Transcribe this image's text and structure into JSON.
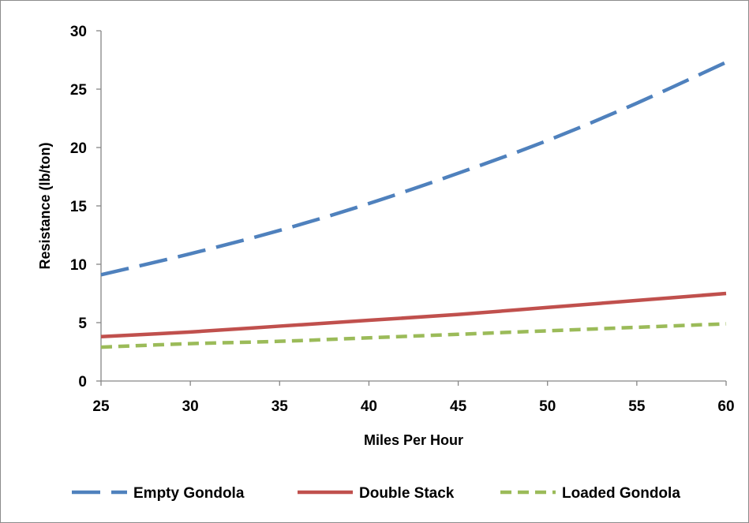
{
  "chart_data": {
    "type": "line",
    "title": "",
    "xlabel": "Miles Per Hour",
    "ylabel": "Resistance (lb/ton)",
    "xlim": [
      25,
      60
    ],
    "ylim": [
      0,
      30
    ],
    "x_ticks": [
      "25",
      "30",
      "35",
      "40",
      "45",
      "50",
      "55",
      "60"
    ],
    "y_ticks": [
      "0",
      "5",
      "10",
      "15",
      "20",
      "25",
      "30"
    ],
    "grid": false,
    "legend_position": "bottom",
    "x": [
      25,
      30,
      35,
      40,
      45,
      50,
      55,
      60
    ],
    "series": [
      {
        "name": "Empty Gondola",
        "color": "#4f81bd",
        "style": "long-dash",
        "values": [
          9.1,
          10.9,
          12.9,
          15.2,
          17.8,
          20.6,
          23.8,
          27.3
        ]
      },
      {
        "name": "Double Stack",
        "color": "#c0504d",
        "style": "solid",
        "values": [
          3.8,
          4.2,
          4.7,
          5.2,
          5.7,
          6.3,
          6.9,
          7.5
        ]
      },
      {
        "name": "Loaded Gondola",
        "color": "#9bbb59",
        "style": "short-dash",
        "values": [
          2.9,
          3.2,
          3.4,
          3.7,
          4.0,
          4.3,
          4.6,
          4.9
        ]
      }
    ]
  }
}
